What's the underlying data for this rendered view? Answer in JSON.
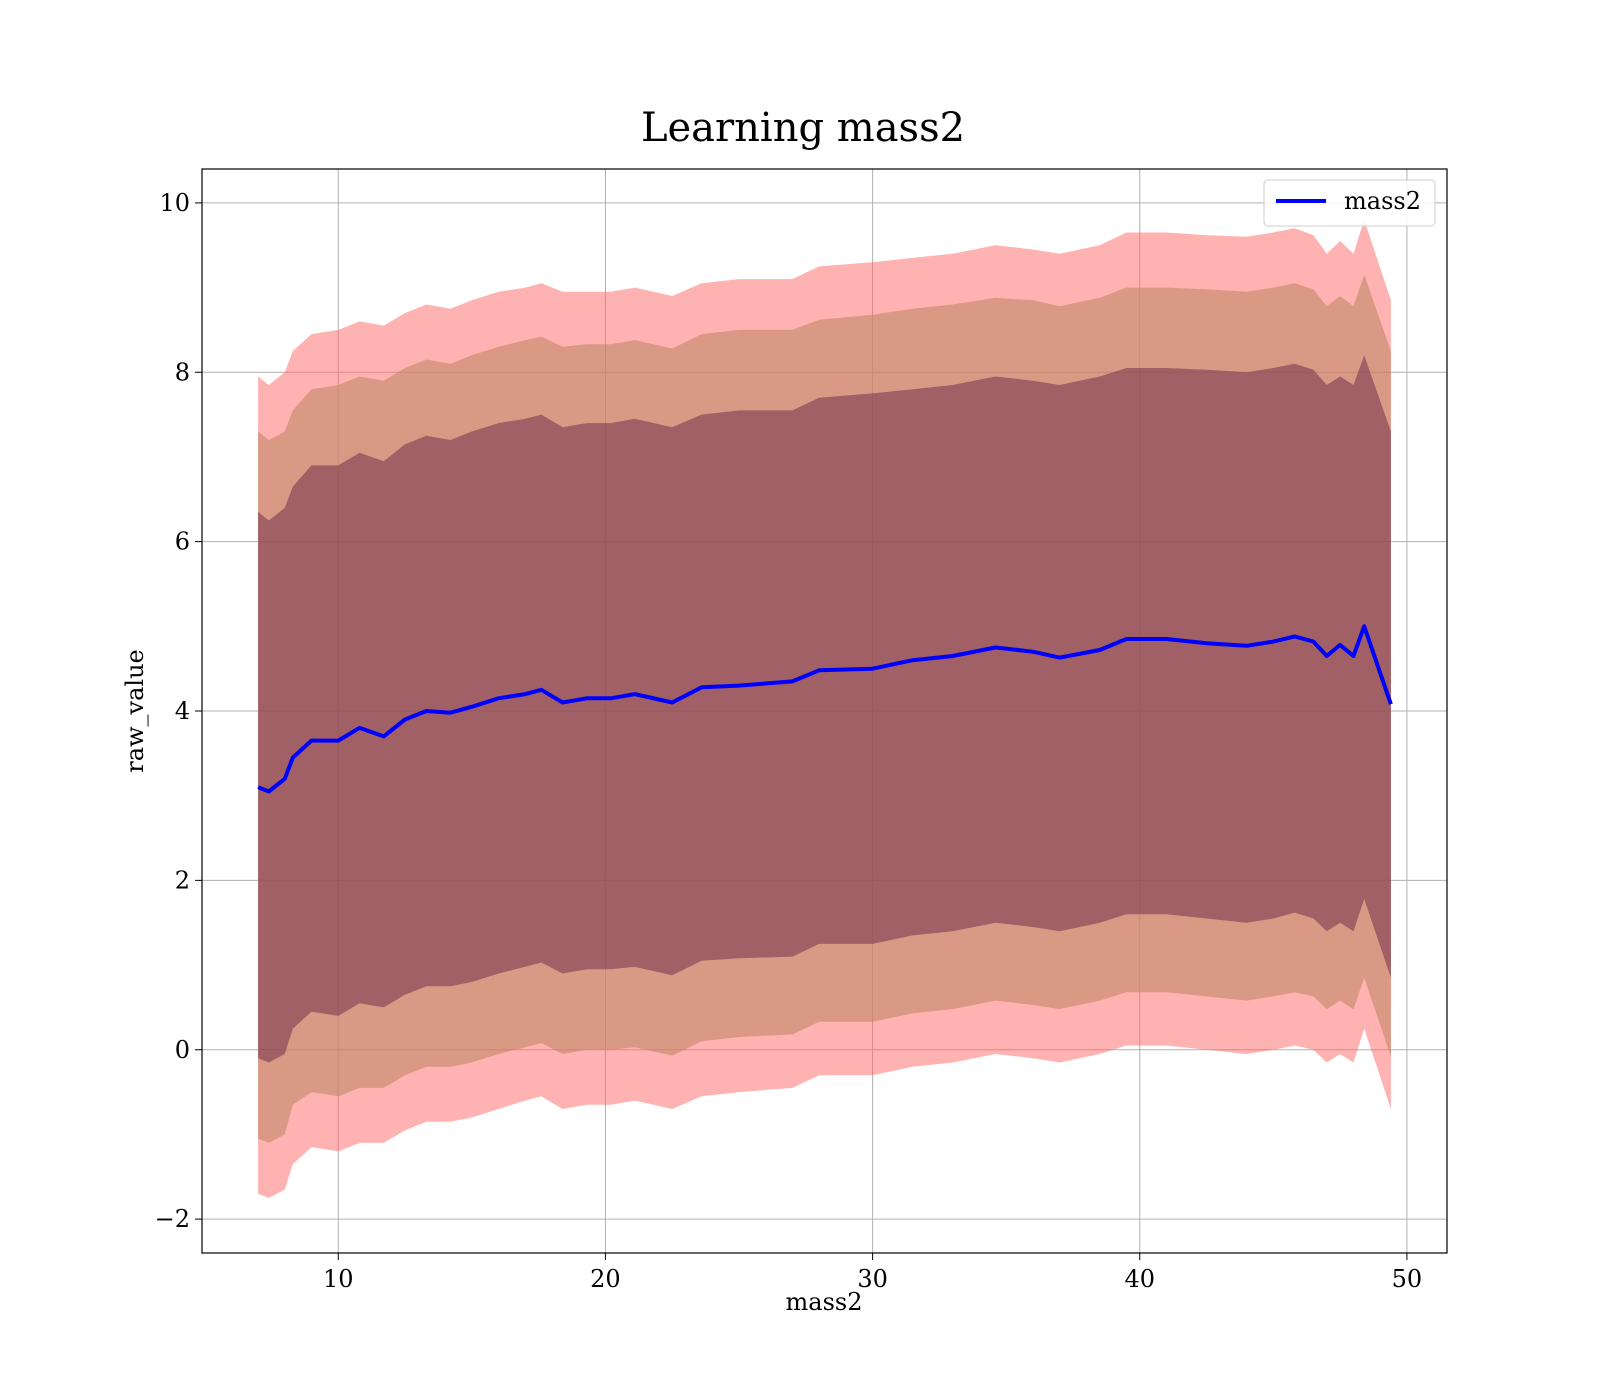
{
  "chart_data": {
    "type": "area",
    "title": "Learning mass2",
    "xlabel": "mass2",
    "ylabel": "raw_value",
    "xlim": [
      4.9,
      51.5
    ],
    "ylim": [
      -2.4,
      10.4
    ],
    "xticks": [
      10,
      20,
      30,
      40,
      50
    ],
    "yticks": [
      -2,
      0,
      2,
      4,
      6,
      8,
      10
    ],
    "xtick_labels": [
      "10",
      "20",
      "30",
      "40",
      "50"
    ],
    "ytick_labels": [
      "−2",
      "0",
      "2",
      "4",
      "6",
      "8",
      "10"
    ],
    "grid": true,
    "legend_position": "top-right",
    "x": [
      7.0,
      7.4,
      8.0,
      8.3,
      9.0,
      10.0,
      10.8,
      11.7,
      12.5,
      13.3,
      14.2,
      15.0,
      16.0,
      17.0,
      17.6,
      18.4,
      19.3,
      20.2,
      21.1,
      22.5,
      23.6,
      25.0,
      27.0,
      28.0,
      30.0,
      31.5,
      33.0,
      34.6,
      36.0,
      37.0,
      38.5,
      39.5,
      41.0,
      42.5,
      44.0,
      45.0,
      45.8,
      46.5,
      47.0,
      47.5,
      48.0,
      48.4,
      49.4
    ],
    "series": [
      {
        "name": "mass2",
        "color": "#0000ff",
        "values": [
          3.1,
          3.05,
          3.2,
          3.45,
          3.65,
          3.65,
          3.8,
          3.7,
          3.9,
          4.0,
          3.98,
          4.05,
          4.15,
          4.2,
          4.25,
          4.1,
          4.15,
          4.15,
          4.2,
          4.1,
          4.28,
          4.3,
          4.35,
          4.48,
          4.5,
          4.6,
          4.65,
          4.75,
          4.7,
          4.63,
          4.72,
          4.85,
          4.85,
          4.8,
          4.77,
          4.82,
          4.88,
          4.82,
          4.65,
          4.78,
          4.65,
          5.0,
          4.08
        ]
      }
    ],
    "bands": [
      {
        "color": "#ff6666",
        "opacity": 0.5,
        "upper": [
          7.95,
          7.85,
          8.0,
          8.25,
          8.45,
          8.5,
          8.6,
          8.55,
          8.7,
          8.8,
          8.75,
          8.85,
          8.95,
          9.0,
          9.05,
          8.95,
          8.95,
          8.95,
          9.0,
          8.9,
          9.05,
          9.1,
          9.1,
          9.25,
          9.3,
          9.35,
          9.4,
          9.5,
          9.45,
          9.4,
          9.5,
          9.65,
          9.65,
          9.62,
          9.6,
          9.65,
          9.7,
          9.62,
          9.4,
          9.55,
          9.4,
          9.8,
          8.85
        ],
        "lower": [
          -1.7,
          -1.75,
          -1.65,
          -1.35,
          -1.15,
          -1.2,
          -1.1,
          -1.1,
          -0.95,
          -0.85,
          -0.85,
          -0.8,
          -0.7,
          -0.6,
          -0.55,
          -0.7,
          -0.65,
          -0.65,
          -0.6,
          -0.7,
          -0.55,
          -0.5,
          -0.45,
          -0.3,
          -0.3,
          -0.2,
          -0.15,
          -0.05,
          -0.1,
          -0.15,
          -0.05,
          0.05,
          0.05,
          0.0,
          -0.05,
          0.0,
          0.05,
          0.0,
          -0.15,
          -0.05,
          -0.15,
          0.25,
          -0.7
        ]
      },
      {
        "color": "#c08866",
        "opacity": 0.6,
        "upper": [
          7.3,
          7.2,
          7.3,
          7.55,
          7.8,
          7.85,
          7.95,
          7.9,
          8.05,
          8.15,
          8.1,
          8.2,
          8.3,
          8.38,
          8.42,
          8.3,
          8.33,
          8.33,
          8.38,
          8.28,
          8.45,
          8.5,
          8.5,
          8.62,
          8.68,
          8.75,
          8.8,
          8.88,
          8.85,
          8.78,
          8.88,
          9.0,
          9.0,
          8.98,
          8.95,
          9.0,
          9.05,
          8.98,
          8.78,
          8.9,
          8.78,
          9.15,
          8.25
        ],
        "lower": [
          -1.05,
          -1.1,
          -1.0,
          -0.65,
          -0.5,
          -0.55,
          -0.45,
          -0.45,
          -0.3,
          -0.2,
          -0.2,
          -0.15,
          -0.05,
          0.03,
          0.08,
          -0.05,
          0.0,
          0.0,
          0.03,
          -0.07,
          0.1,
          0.15,
          0.18,
          0.33,
          0.33,
          0.43,
          0.48,
          0.58,
          0.53,
          0.48,
          0.58,
          0.68,
          0.68,
          0.63,
          0.58,
          0.63,
          0.68,
          0.63,
          0.48,
          0.58,
          0.48,
          0.85,
          -0.08
        ]
      },
      {
        "color": "#7a3a50",
        "opacity": 0.6,
        "upper": [
          6.35,
          6.25,
          6.4,
          6.65,
          6.9,
          6.9,
          7.05,
          6.95,
          7.15,
          7.25,
          7.2,
          7.3,
          7.4,
          7.45,
          7.5,
          7.35,
          7.4,
          7.4,
          7.45,
          7.35,
          7.5,
          7.55,
          7.55,
          7.7,
          7.75,
          7.8,
          7.85,
          7.95,
          7.9,
          7.85,
          7.95,
          8.05,
          8.05,
          8.03,
          8.0,
          8.05,
          8.1,
          8.03,
          7.85,
          7.95,
          7.85,
          8.2,
          7.3
        ],
        "lower": [
          -0.1,
          -0.15,
          -0.05,
          0.25,
          0.45,
          0.4,
          0.55,
          0.5,
          0.65,
          0.75,
          0.75,
          0.8,
          0.9,
          0.98,
          1.03,
          0.9,
          0.95,
          0.95,
          0.98,
          0.88,
          1.05,
          1.08,
          1.1,
          1.25,
          1.25,
          1.35,
          1.4,
          1.5,
          1.45,
          1.4,
          1.5,
          1.6,
          1.6,
          1.55,
          1.5,
          1.55,
          1.62,
          1.55,
          1.4,
          1.5,
          1.4,
          1.78,
          0.85
        ]
      }
    ]
  }
}
